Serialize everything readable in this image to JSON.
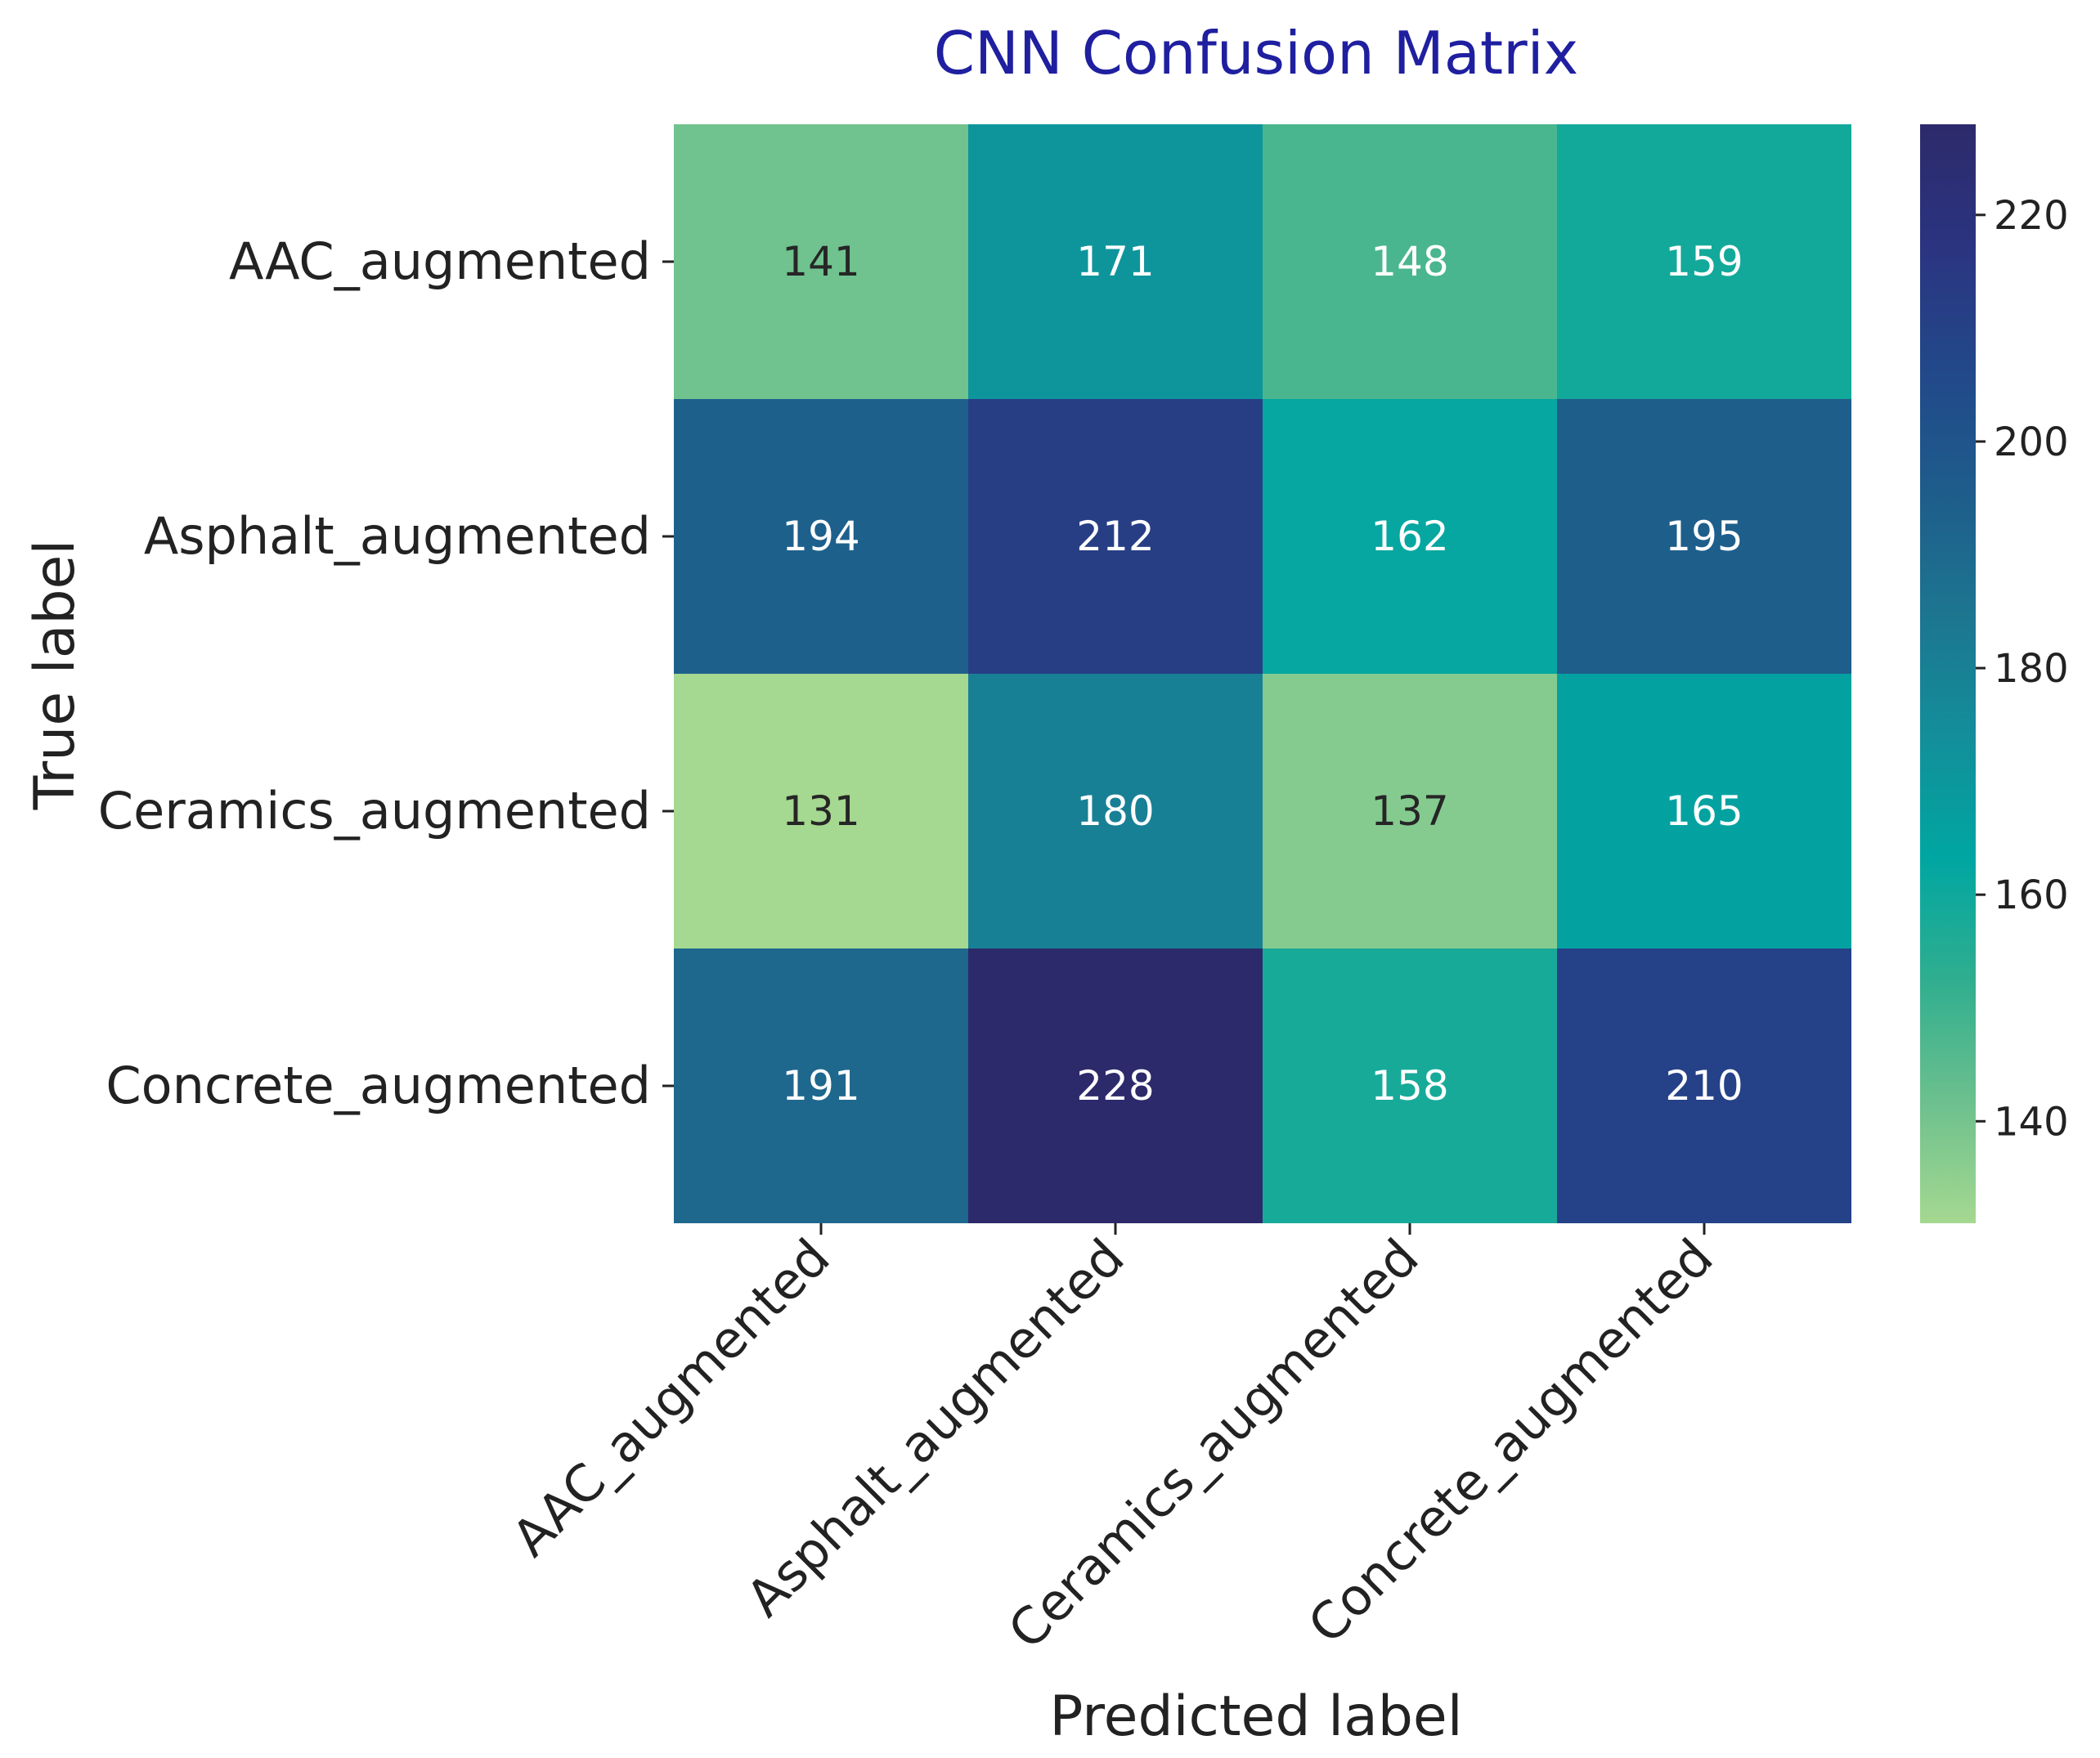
{
  "chart_data": {
    "type": "heatmap",
    "title": "CNN Confusion Matrix",
    "xlabel": "Predicted label",
    "ylabel": "True label",
    "x_categories": [
      "AAC_augmented",
      "Asphalt_augmented",
      "Ceramics_augmented",
      "Concrete_augmented"
    ],
    "y_categories": [
      "AAC_augmented",
      "Asphalt_augmented",
      "Ceramics_augmented",
      "Concrete_augmented"
    ],
    "values": [
      [
        141,
        171,
        148,
        159
      ],
      [
        194,
        212,
        162,
        195
      ],
      [
        131,
        180,
        137,
        165
      ],
      [
        191,
        228,
        158,
        210
      ]
    ],
    "colormap": "crest",
    "colorbar": {
      "range": [
        131,
        228
      ],
      "ticks": [
        140,
        160,
        180,
        200,
        220
      ]
    }
  },
  "colors": {
    "title": "#1f1fa0",
    "text": "#222222",
    "cell_text_light": "#ffffff",
    "cell_text_dark": "#262626",
    "gradient": [
      "#a5d890",
      "#6cc08e",
      "#2fae8f",
      "#00a6a2",
      "#138e9a",
      "#1d7590",
      "#1e5c8b",
      "#22488a",
      "#2b3480",
      "#2c2a6b"
    ]
  }
}
